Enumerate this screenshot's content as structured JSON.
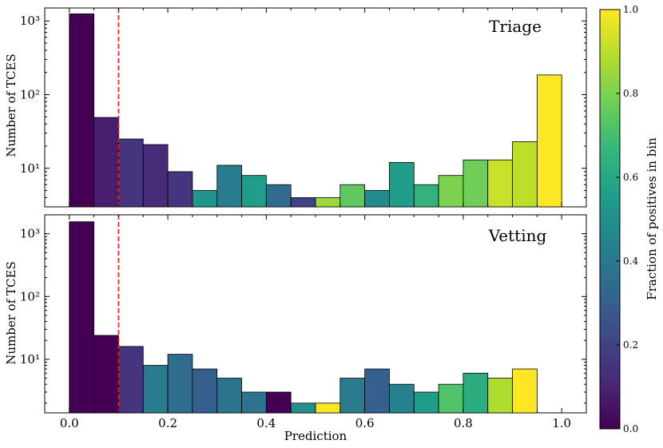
{
  "chart_data": [
    {
      "type": "bar",
      "title": "Triage",
      "ylabel": "Number of TCES",
      "xlabel": "",
      "yscale": "log",
      "ylim": [
        3,
        1500
      ],
      "xlim": [
        -0.05,
        1.05
      ],
      "bin_width": 0.05,
      "x": [
        0.0,
        0.05,
        0.1,
        0.15,
        0.2,
        0.25,
        0.3,
        0.35,
        0.4,
        0.45,
        0.5,
        0.55,
        0.6,
        0.65,
        0.7,
        0.75,
        0.8,
        0.85,
        0.9,
        0.95
      ],
      "values": [
        1250,
        49,
        25,
        21,
        9,
        5,
        11,
        8,
        6,
        4,
        4,
        6,
        5,
        12,
        6,
        8,
        13,
        13,
        23,
        185
      ],
      "fraction_positive": [
        0.0,
        0.08,
        0.15,
        0.12,
        0.15,
        0.52,
        0.42,
        0.55,
        0.35,
        0.2,
        0.85,
        0.75,
        0.48,
        0.55,
        0.65,
        0.8,
        0.78,
        0.92,
        0.9,
        1.0
      ],
      "threshold": 0.1,
      "yticks": [
        {
          "value": 10,
          "label": "10¹"
        },
        {
          "value": 100,
          "label": "10²"
        },
        {
          "value": 1000,
          "label": "10³"
        }
      ]
    },
    {
      "type": "bar",
      "title": "Vetting",
      "ylabel": "Number of TCES",
      "xlabel": "Prediction",
      "yscale": "log",
      "ylim": [
        1.4,
        2000
      ],
      "xlim": [
        -0.05,
        1.05
      ],
      "bin_width": 0.05,
      "x": [
        0.0,
        0.05,
        0.1,
        0.15,
        0.2,
        0.25,
        0.3,
        0.35,
        0.4,
        0.45,
        0.5,
        0.55,
        0.6,
        0.65,
        0.7,
        0.75,
        0.8,
        0.85,
        0.9
      ],
      "values": [
        1550,
        24,
        16,
        8,
        12,
        7,
        5,
        3,
        3,
        2,
        2,
        5,
        7,
        4,
        3,
        4,
        6,
        5,
        7
      ],
      "fraction_positive": [
        0.0,
        0.0,
        0.15,
        0.42,
        0.35,
        0.3,
        0.38,
        0.38,
        0.0,
        0.5,
        1.0,
        0.42,
        0.3,
        0.45,
        0.55,
        0.72,
        0.62,
        0.88,
        1.0
      ],
      "threshold": 0.1,
      "yticks": [
        {
          "value": 10,
          "label": "10¹"
        },
        {
          "value": 100,
          "label": "10²"
        },
        {
          "value": 1000,
          "label": "10³"
        }
      ],
      "xticks": [
        {
          "value": 0.0,
          "label": "0.0"
        },
        {
          "value": 0.2,
          "label": "0.2"
        },
        {
          "value": 0.4,
          "label": "0.4"
        },
        {
          "value": 0.6,
          "label": "0.6"
        },
        {
          "value": 0.8,
          "label": "0.8"
        },
        {
          "value": 1.0,
          "label": "1.0"
        }
      ]
    }
  ],
  "colorbar": {
    "label": "Fraction of positives in bin",
    "range": [
      0,
      1
    ],
    "ticks": [
      {
        "value": 0.0,
        "label": "0.0"
      },
      {
        "value": 0.2,
        "label": "0.2"
      },
      {
        "value": 0.4,
        "label": "0.4"
      },
      {
        "value": 0.6,
        "label": "0.6"
      },
      {
        "value": 0.8,
        "label": "0.8"
      },
      {
        "value": 1.0,
        "label": "1.0"
      }
    ],
    "colormap": "viridis",
    "stops": [
      "#440154",
      "#482878",
      "#3e4989",
      "#31688e",
      "#26828e",
      "#1f9e89",
      "#35b779",
      "#6ece58",
      "#b5de2b",
      "#fde725"
    ]
  },
  "styles": {
    "threshold_color": "#e31a1c",
    "bar_edge": "#000000"
  }
}
